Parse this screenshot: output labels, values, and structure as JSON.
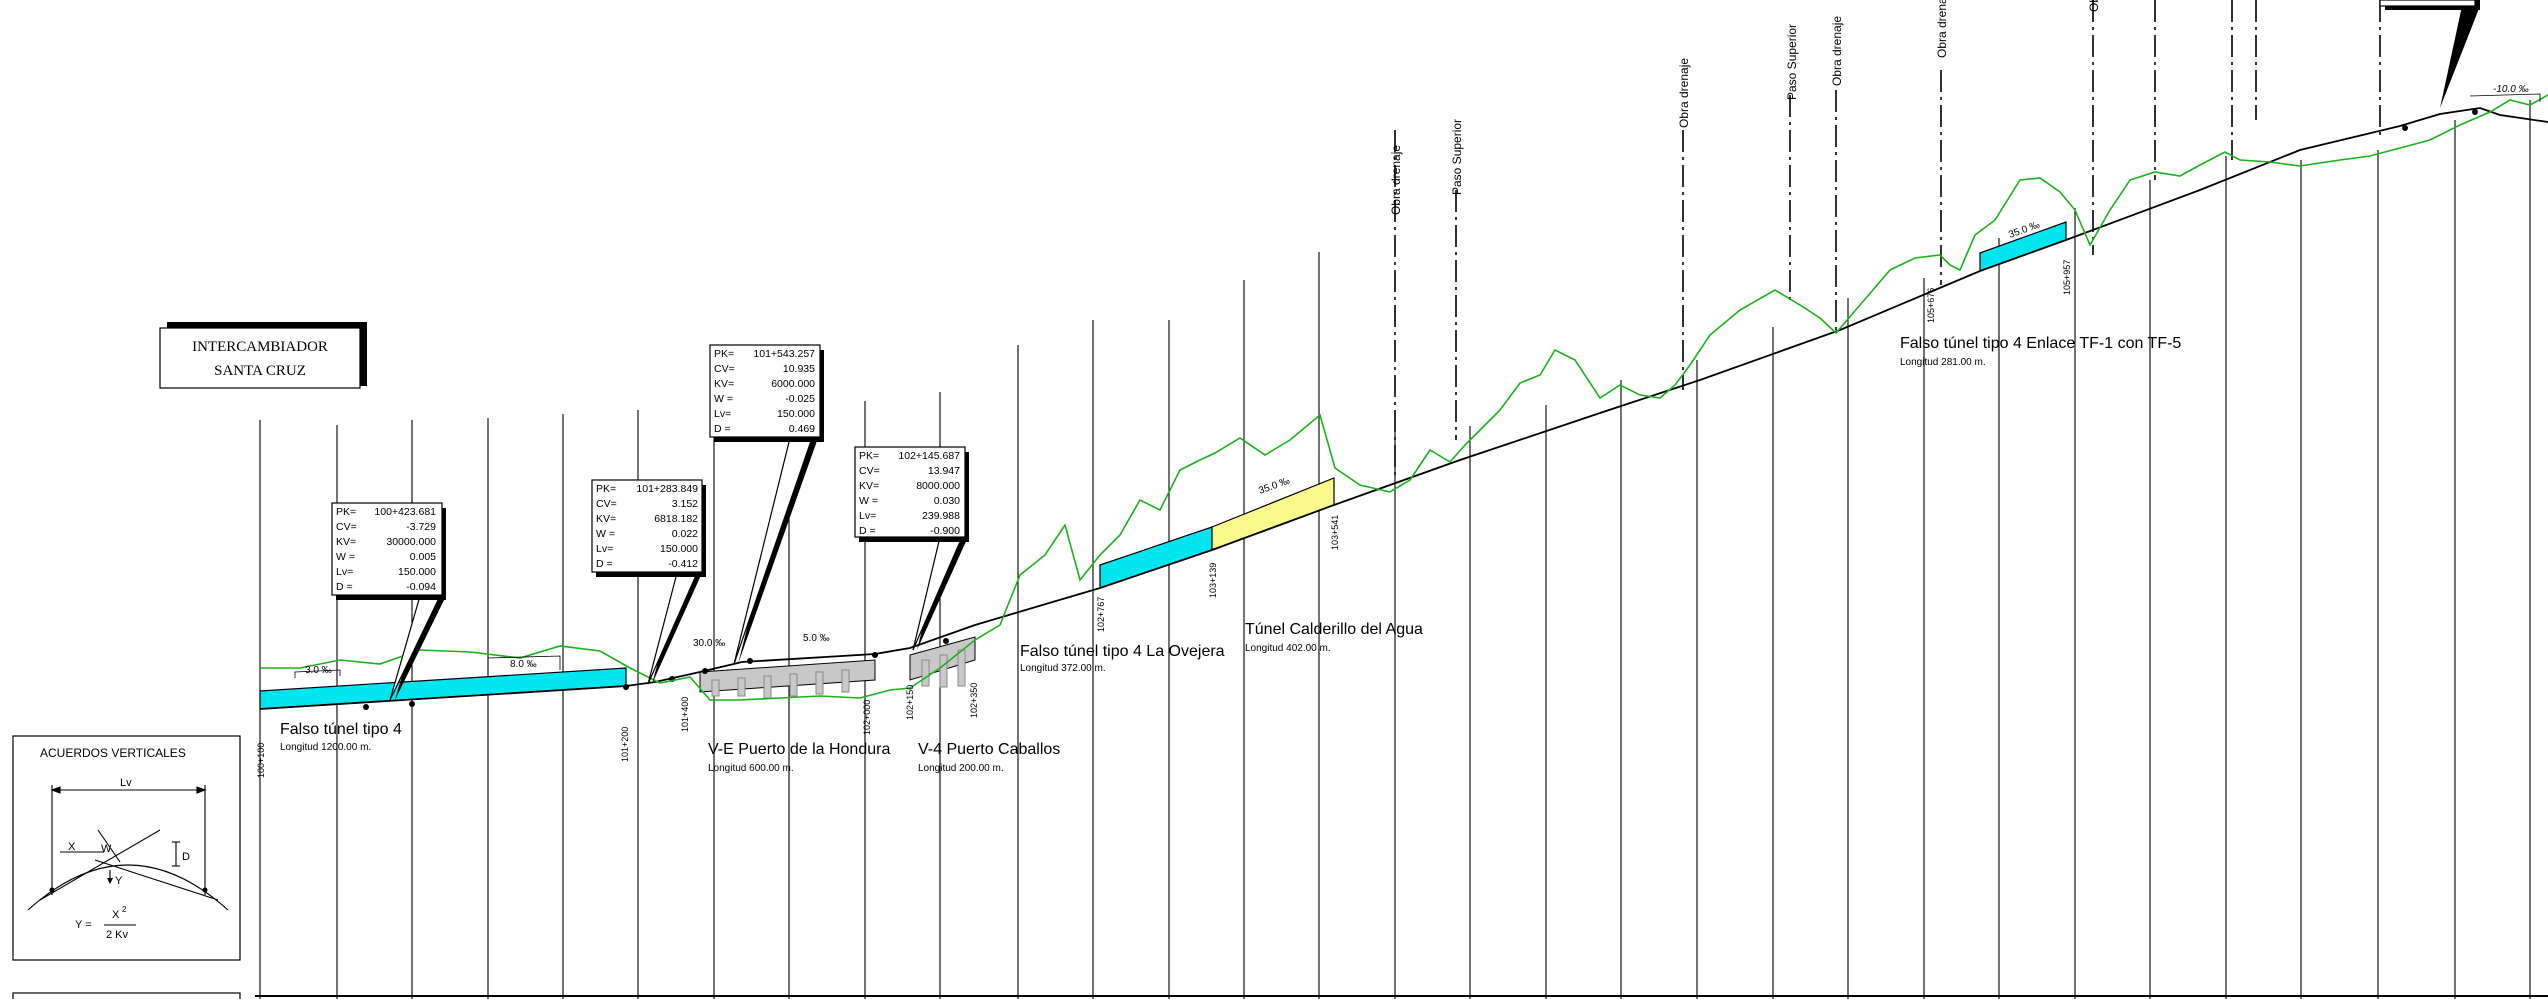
{
  "interchange": {
    "line1": "INTERCAMBIADOR",
    "line2": "SANTA CRUZ"
  },
  "legend": {
    "title": "ACUERDOS VERTICALES",
    "lv": "Lv",
    "x": "X",
    "w": "W",
    "d": "D",
    "y": "Y",
    "formula_lhs": "Y =",
    "formula_num": "X",
    "formula_exp": "2",
    "formula_den": "2  Kv"
  },
  "callouts": [
    {
      "rows": [
        [
          "PK=",
          "100+423.681"
        ],
        [
          "CV=",
          "-3.729"
        ],
        [
          "KV=",
          "30000.000"
        ],
        [
          "W =",
          "0.005"
        ],
        [
          "Lv=",
          "150.000"
        ],
        [
          "D =",
          "-0.094"
        ]
      ]
    },
    {
      "rows": [
        [
          "PK=",
          "101+283.849"
        ],
        [
          "CV=",
          "3.152"
        ],
        [
          "KV=",
          "6818.182"
        ],
        [
          "W =",
          "0.022"
        ],
        [
          "Lv=",
          "150.000"
        ],
        [
          "D =",
          "-0.412"
        ]
      ]
    },
    {
      "rows": [
        [
          "PK=",
          "101+543.257"
        ],
        [
          "CV=",
          "10.935"
        ],
        [
          "KV=",
          "6000.000"
        ],
        [
          "W =",
          "-0.025"
        ],
        [
          "Lv=",
          "150.000"
        ],
        [
          "D =",
          "0.469"
        ]
      ]
    },
    {
      "rows": [
        [
          "PK=",
          "102+145.687"
        ],
        [
          "CV=",
          "13.947"
        ],
        [
          "KV=",
          "8000.000"
        ],
        [
          "W =",
          "0.030"
        ],
        [
          "Lv=",
          "239.988"
        ],
        [
          "D =",
          "-0.900"
        ]
      ]
    }
  ],
  "structures": [
    {
      "name": "Falso túnel tipo 4",
      "length": "Longitud 1200.00 m."
    },
    {
      "name": "V-E Puerto de la Hondura",
      "length": "Longitud 600.00 m."
    },
    {
      "name": "V-4 Puerto Caballos",
      "length": "Longitud 200.00 m."
    },
    {
      "name": "Falso túnel tipo 4 La Ovejera",
      "length": "Longitud 372.00 m."
    },
    {
      "name": "Túnel Calderillo del Agua",
      "length": "Longitud 402.00 m."
    },
    {
      "name": "Falso túnel tipo 4 Enlace TF-1 con TF-5",
      "length": "Longitud 281.00 m."
    }
  ],
  "chainages": [
    "100+100",
    "101+200",
    "101+400",
    "102+000",
    "102+150",
    "102+350",
    "102+767",
    "103+139",
    "103+541",
    "105+676",
    "105+957"
  ],
  "grades": [
    "3.0 ‰",
    "8.0 ‰",
    "30.0 ‰",
    "5.0 ‰",
    "35.0 ‰",
    "35.0 ‰",
    "-10.0 ‰"
  ],
  "crossings": [
    "Obra drenaje",
    "Paso Superior",
    "Obra drenaje",
    "Paso Superior",
    "Obra drenaje",
    "Obra drenaje",
    "Obra d"
  ],
  "colors": {
    "terrain": "#19b219",
    "grade_line": "#000000",
    "false_tunnel": "#00e5ee",
    "tunnel": "#fafa8c",
    "viaduct": "#c8c8c8"
  }
}
